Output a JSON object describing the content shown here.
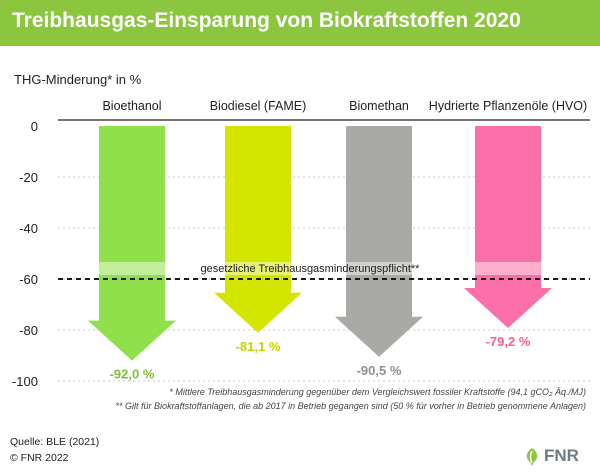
{
  "title": "Treibhausgas-Einsparung von Biokraftstoffen 2020",
  "colors": {
    "title_bg": "#8cc63f",
    "threshold": "#1a1a1a"
  },
  "footnotes": {
    "f1": "* Mittlere Treibhausgasminderung gegenüber dem Vergleichswert fossiler Kraftstoffe (94,1 gCO₂ Äq./MJ)",
    "f2": "** Gilt für Biokraftstoffanlagen, die ab 2017 in Betrieb gegangen sind (50 % für vorher in Betrieb genommene Anlagen)"
  },
  "source": {
    "line1": "Quelle: BLE (2021)",
    "line2": "© FNR 2022"
  },
  "logo": {
    "text": "FNR",
    "icon": "fnr-leaf-logo"
  },
  "chart_data": {
    "type": "bar",
    "ylabel": "THG-Minderung* in %",
    "ylim": [
      -100,
      0
    ],
    "yticks": [
      0,
      -20,
      -40,
      -60,
      -80,
      -100
    ],
    "grid": true,
    "categories": [
      "Bioethanol",
      "Biodiesel (FAME)",
      "Biomethan",
      "Hydrierte Pflanzenöle (HVO)"
    ],
    "values": [
      -92.0,
      -81.1,
      -90.5,
      -79.2
    ],
    "value_labels": [
      "-92,0 %",
      "-81,1 %",
      "-90,5 %",
      "-79,2 %"
    ],
    "colors": [
      "#8fe04a",
      "#d4e600",
      "#a9aaa5",
      "#fa6fa7"
    ],
    "label_colors": [
      "#7fbf32",
      "#c2d400",
      "#8e908a",
      "#f4608f"
    ],
    "threshold": {
      "value": -60,
      "label": "gesetzliche Treibhausgasminderungspflicht**"
    }
  }
}
